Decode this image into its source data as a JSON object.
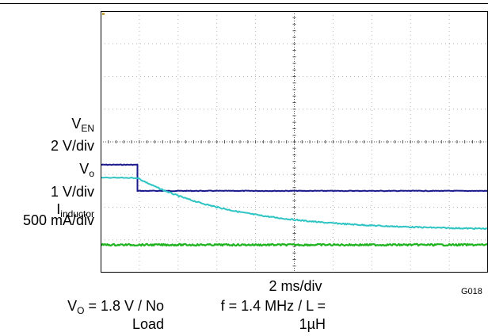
{
  "chart_data": {
    "type": "line",
    "x_divisions": 10,
    "y_divisions": 8,
    "x_scale": "2 ms/div",
    "figure_id": "G018",
    "channels": [
      {
        "id": "ven",
        "name_base": "V",
        "name_sub": "EN",
        "scale": "2 V/div",
        "color": "#1a1a8c",
        "points": [
          [
            0,
            3.3
          ],
          [
            0.95,
            3.3
          ],
          [
            0.95,
            2.5
          ],
          [
            10,
            2.5
          ]
        ]
      },
      {
        "id": "vo",
        "name_base": "V",
        "name_sub": "o",
        "scale": "1 V/div",
        "color": "#2fc4c4",
        "decay": {
          "start_div": 0.95,
          "start_level": 2.9,
          "end_level": 1.3,
          "tau_div": 2.5,
          "end_div": 10
        }
      },
      {
        "id": "iind",
        "name_base": "I",
        "name_sub": "inductor",
        "scale": "500 mA/div",
        "color": "#1fb41f",
        "points": [
          [
            0,
            0.85
          ],
          [
            10,
            0.85
          ]
        ]
      }
    ],
    "conditions": {
      "left_line1_base": "V",
      "left_line1_sub": "O",
      "left_line1_rest": " = 1.8 V / No",
      "left_line2": "Load",
      "right_line1": "f = 1.4 MHz / L =",
      "right_line2": "1µH"
    },
    "colors": {
      "grid": "#b4b4b4",
      "frame": "#000000",
      "center_marker": "#c8a040"
    }
  }
}
